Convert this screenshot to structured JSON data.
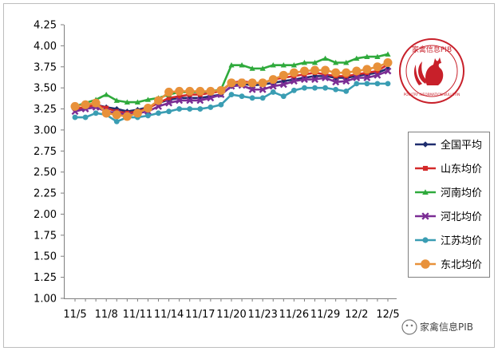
{
  "chart_data": {
    "type": "line",
    "title": "",
    "xlabel": "",
    "ylabel": "",
    "ylim": [
      1.0,
      4.25
    ],
    "y_ticks": [
      "1.00",
      "1.25",
      "1.50",
      "1.75",
      "2.00",
      "2.25",
      "2.50",
      "2.75",
      "3.00",
      "3.25",
      "3.50",
      "3.75",
      "4.00",
      "4.25"
    ],
    "x_tick_labels": [
      "11/5",
      "11/8",
      "11/11",
      "11/14",
      "11/17",
      "11/20",
      "11/23",
      "11/26",
      "11/29",
      "12/2",
      "12/5"
    ],
    "x_tick_indices": [
      0,
      3,
      6,
      9,
      12,
      15,
      18,
      21,
      24,
      27,
      30
    ],
    "x": [
      "11/5",
      "11/6",
      "11/7",
      "11/8",
      "11/9",
      "11/10",
      "11/11",
      "11/12",
      "11/13",
      "11/14",
      "11/15",
      "11/16",
      "11/17",
      "11/18",
      "11/19",
      "11/20",
      "11/21",
      "11/22",
      "11/23",
      "11/24",
      "11/25",
      "11/26",
      "11/27",
      "11/28",
      "11/29",
      "11/30",
      "12/1",
      "12/2",
      "12/3",
      "12/4",
      "12/5"
    ],
    "grid": "none",
    "legend_position": "right",
    "series": [
      {
        "name": "全国平均",
        "color": "#1f2d6e",
        "marker": "diamond",
        "values": [
          3.25,
          3.27,
          3.3,
          3.27,
          3.25,
          3.22,
          3.24,
          3.27,
          3.32,
          3.36,
          3.38,
          3.38,
          3.38,
          3.4,
          3.42,
          3.52,
          3.55,
          3.53,
          3.54,
          3.56,
          3.58,
          3.6,
          3.62,
          3.64,
          3.64,
          3.62,
          3.62,
          3.64,
          3.66,
          3.68,
          3.73
        ]
      },
      {
        "name": "山东均价",
        "color": "#d42a2a",
        "marker": "square",
        "values": [
          3.25,
          3.27,
          3.3,
          3.26,
          3.22,
          3.2,
          3.22,
          3.26,
          3.32,
          3.38,
          3.4,
          3.42,
          3.42,
          3.44,
          3.46,
          3.56,
          3.58,
          3.56,
          3.56,
          3.6,
          3.62,
          3.64,
          3.66,
          3.68,
          3.66,
          3.64,
          3.64,
          3.66,
          3.68,
          3.7,
          3.78
        ]
      },
      {
        "name": "河南均价",
        "color": "#2faa3c",
        "marker": "triangle",
        "values": [
          3.28,
          3.32,
          3.36,
          3.42,
          3.35,
          3.33,
          3.33,
          3.36,
          3.38,
          3.42,
          3.45,
          3.45,
          3.45,
          3.46,
          3.48,
          3.77,
          3.77,
          3.73,
          3.73,
          3.77,
          3.77,
          3.77,
          3.8,
          3.8,
          3.85,
          3.8,
          3.8,
          3.85,
          3.87,
          3.87,
          3.9
        ]
      },
      {
        "name": "河北均价",
        "color": "#7b2d94",
        "marker": "x",
        "values": [
          3.22,
          3.25,
          3.27,
          3.22,
          3.2,
          3.18,
          3.2,
          3.22,
          3.28,
          3.32,
          3.35,
          3.35,
          3.35,
          3.38,
          3.42,
          3.52,
          3.53,
          3.48,
          3.48,
          3.52,
          3.54,
          3.58,
          3.6,
          3.6,
          3.62,
          3.57,
          3.58,
          3.62,
          3.62,
          3.65,
          3.7
        ]
      },
      {
        "name": "江苏均价",
        "color": "#3a9db3",
        "marker": "star",
        "values": [
          3.15,
          3.15,
          3.2,
          3.18,
          3.1,
          3.15,
          3.15,
          3.17,
          3.2,
          3.22,
          3.25,
          3.25,
          3.25,
          3.27,
          3.3,
          3.42,
          3.4,
          3.38,
          3.38,
          3.45,
          3.4,
          3.47,
          3.5,
          3.5,
          3.5,
          3.48,
          3.46,
          3.55,
          3.55,
          3.55,
          3.55
        ]
      },
      {
        "name": "东北均价",
        "color": "#e8913a",
        "marker": "circle",
        "values": [
          3.28,
          3.3,
          3.32,
          3.2,
          3.18,
          3.16,
          3.2,
          3.26,
          3.35,
          3.45,
          3.46,
          3.46,
          3.46,
          3.46,
          3.47,
          3.56,
          3.56,
          3.56,
          3.56,
          3.6,
          3.65,
          3.68,
          3.7,
          3.71,
          3.71,
          3.68,
          3.68,
          3.7,
          3.72,
          3.75,
          3.8
        ]
      }
    ]
  },
  "logo": {
    "title": "家禽信息PIB",
    "subtitle": "POULTRY INFORMATION BULLETIN"
  },
  "watermark": {
    "text": "家禽信息PIB"
  }
}
